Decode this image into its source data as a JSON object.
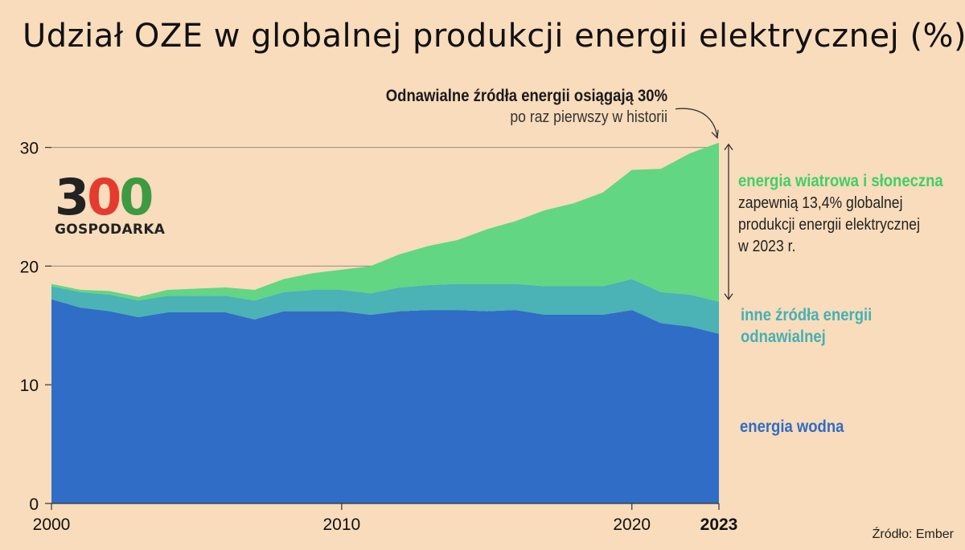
{
  "title": "Udział OZE w globalnej produkcji energii elektrycznej (%)",
  "annotation": {
    "bold": "Odnawialne źródła energii osiągają 30%",
    "sub": "po raz pierwszy w historii"
  },
  "labels": {
    "wind_solar": "energia wiatrowa i słoneczna",
    "wind_solar_desc": [
      "zapewnią 13,4% globalnej",
      "produkcji energii elektrycznej",
      "w 2023 r."
    ],
    "other": [
      "inne źródła energii",
      "odnawialnej"
    ],
    "hydro": "energia wodna"
  },
  "source": "Źródło: Ember",
  "logo": {
    "digits": [
      "3",
      "0",
      "0"
    ],
    "text": "GOSPODARKA"
  },
  "colors": {
    "background": "#f8dcbb",
    "hydro": "#306dc7",
    "other": "#4bb2b6",
    "wind_solar": "#62d683",
    "logo_3": "#222222",
    "logo_0a": "#e53a2f",
    "logo_0b": "#3d9a43"
  },
  "chart_data": {
    "type": "area",
    "stacked": true,
    "x": [
      2000,
      2001,
      2002,
      2003,
      2004,
      2005,
      2006,
      2007,
      2008,
      2009,
      2010,
      2011,
      2012,
      2013,
      2014,
      2015,
      2016,
      2017,
      2018,
      2019,
      2020,
      2021,
      2022,
      2023
    ],
    "series": [
      {
        "name": "energia wodna",
        "values": [
          17.2,
          16.5,
          16.2,
          15.7,
          16.1,
          16.1,
          16.1,
          15.5,
          16.2,
          16.2,
          16.2,
          15.9,
          16.2,
          16.3,
          16.3,
          16.2,
          16.3,
          15.9,
          15.9,
          15.9,
          16.3,
          15.2,
          14.9,
          14.3
        ]
      },
      {
        "name": "inne źródła energii odnawialnej",
        "values": [
          1.1,
          1.3,
          1.4,
          1.4,
          1.4,
          1.4,
          1.4,
          1.6,
          1.6,
          1.8,
          1.8,
          1.8,
          2.0,
          2.1,
          2.2,
          2.3,
          2.2,
          2.4,
          2.4,
          2.4,
          2.6,
          2.6,
          2.7,
          2.7
        ]
      },
      {
        "name": "energia wiatrowa i słoneczna",
        "values": [
          0.2,
          0.2,
          0.3,
          0.3,
          0.5,
          0.6,
          0.7,
          0.9,
          1.1,
          1.4,
          1.7,
          2.3,
          2.8,
          3.3,
          3.7,
          4.6,
          5.3,
          6.4,
          7.0,
          7.9,
          9.2,
          10.4,
          11.9,
          13.4
        ]
      }
    ],
    "ylim": [
      0,
      30.4
    ],
    "yticks": [
      "0",
      "10",
      "20",
      "30"
    ],
    "xticks": [
      "2000",
      "2010",
      "2020",
      "2023"
    ],
    "highlight_tick": "2023",
    "grid": "horizontal"
  }
}
